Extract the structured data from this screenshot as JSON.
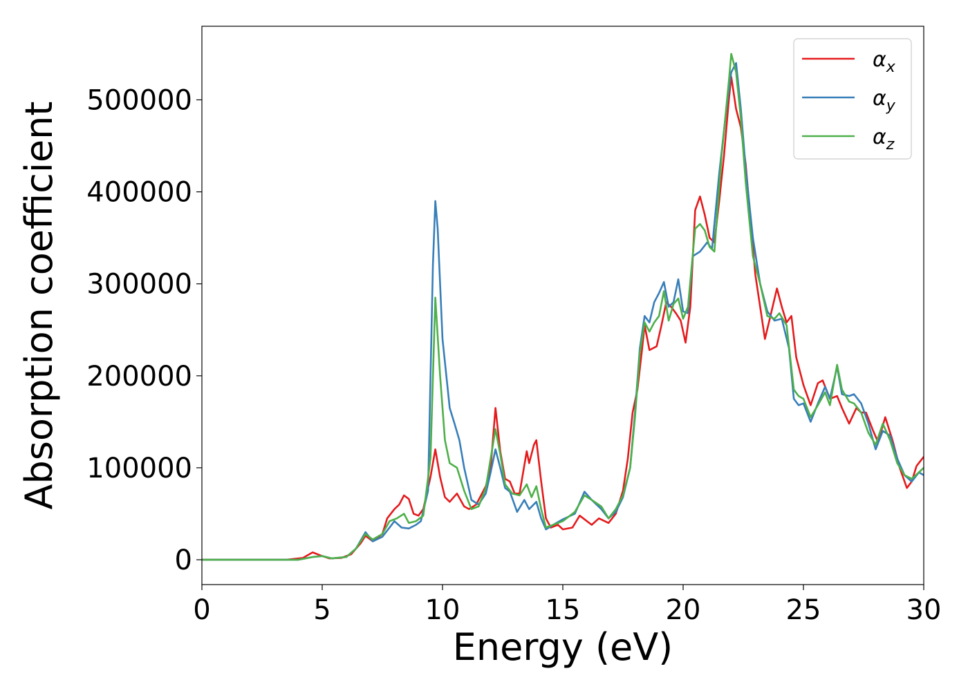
{
  "chart_data": {
    "type": "line",
    "title": "",
    "xlabel": "Energy (eV)",
    "ylabel": "Absorption coefficient",
    "xlim": [
      0,
      30
    ],
    "ylim": [
      -27000,
      580000
    ],
    "xticks": [
      0,
      5,
      10,
      15,
      20,
      25,
      30
    ],
    "yticks": [
      0,
      100000,
      200000,
      300000,
      400000,
      500000
    ],
    "grid": false,
    "legend_position": "top-right",
    "series": [
      {
        "name": "α_x",
        "symbol": "α",
        "subscript": "x",
        "color": "#e41a1c",
        "points": [
          [
            0,
            0
          ],
          [
            3.5,
            0
          ],
          [
            4.2,
            2000
          ],
          [
            4.6,
            8000
          ],
          [
            5.0,
            4000
          ],
          [
            5.3,
            1500
          ],
          [
            5.8,
            2000
          ],
          [
            6.2,
            6000
          ],
          [
            6.6,
            18000
          ],
          [
            6.8,
            26000
          ],
          [
            7.1,
            20000
          ],
          [
            7.5,
            28000
          ],
          [
            7.7,
            45000
          ],
          [
            8.0,
            55000
          ],
          [
            8.2,
            60000
          ],
          [
            8.4,
            70000
          ],
          [
            8.6,
            66000
          ],
          [
            8.8,
            50000
          ],
          [
            9.0,
            48000
          ],
          [
            9.2,
            55000
          ],
          [
            9.5,
            90000
          ],
          [
            9.7,
            120000
          ],
          [
            9.9,
            90000
          ],
          [
            10.1,
            68000
          ],
          [
            10.3,
            63000
          ],
          [
            10.6,
            72000
          ],
          [
            10.9,
            58000
          ],
          [
            11.1,
            55000
          ],
          [
            11.4,
            60000
          ],
          [
            11.8,
            80000
          ],
          [
            12.0,
            100000
          ],
          [
            12.2,
            165000
          ],
          [
            12.4,
            118000
          ],
          [
            12.6,
            88000
          ],
          [
            12.8,
            85000
          ],
          [
            13.0,
            72000
          ],
          [
            13.2,
            72000
          ],
          [
            13.5,
            118000
          ],
          [
            13.6,
            105000
          ],
          [
            13.8,
            125000
          ],
          [
            13.9,
            130000
          ],
          [
            14.1,
            85000
          ],
          [
            14.3,
            45000
          ],
          [
            14.5,
            35000
          ],
          [
            14.8,
            38000
          ],
          [
            15.0,
            33000
          ],
          [
            15.4,
            35000
          ],
          [
            15.7,
            48000
          ],
          [
            16.0,
            42000
          ],
          [
            16.2,
            38000
          ],
          [
            16.5,
            45000
          ],
          [
            16.9,
            40000
          ],
          [
            17.2,
            50000
          ],
          [
            17.5,
            75000
          ],
          [
            17.7,
            110000
          ],
          [
            17.9,
            160000
          ],
          [
            18.1,
            185000
          ],
          [
            18.3,
            230000
          ],
          [
            18.4,
            255000
          ],
          [
            18.6,
            228000
          ],
          [
            18.9,
            232000
          ],
          [
            19.1,
            255000
          ],
          [
            19.3,
            280000
          ],
          [
            19.5,
            275000
          ],
          [
            19.7,
            268000
          ],
          [
            19.9,
            260000
          ],
          [
            20.1,
            236000
          ],
          [
            20.3,
            275000
          ],
          [
            20.5,
            380000
          ],
          [
            20.7,
            395000
          ],
          [
            20.9,
            375000
          ],
          [
            21.1,
            350000
          ],
          [
            21.3,
            345000
          ],
          [
            21.5,
            390000
          ],
          [
            21.7,
            440000
          ],
          [
            21.9,
            500000
          ],
          [
            22.0,
            525000
          ],
          [
            22.2,
            490000
          ],
          [
            22.4,
            470000
          ],
          [
            22.6,
            430000
          ],
          [
            22.8,
            370000
          ],
          [
            23.0,
            310000
          ],
          [
            23.2,
            275000
          ],
          [
            23.4,
            240000
          ],
          [
            23.6,
            262000
          ],
          [
            23.9,
            295000
          ],
          [
            24.1,
            275000
          ],
          [
            24.3,
            258000
          ],
          [
            24.5,
            265000
          ],
          [
            24.7,
            220000
          ],
          [
            25.0,
            190000
          ],
          [
            25.3,
            168000
          ],
          [
            25.6,
            192000
          ],
          [
            25.8,
            195000
          ],
          [
            26.1,
            175000
          ],
          [
            26.4,
            178000
          ],
          [
            26.6,
            165000
          ],
          [
            26.9,
            148000
          ],
          [
            27.2,
            165000
          ],
          [
            27.4,
            160000
          ],
          [
            27.6,
            160000
          ],
          [
            27.9,
            140000
          ],
          [
            28.1,
            128000
          ],
          [
            28.4,
            155000
          ],
          [
            28.7,
            130000
          ],
          [
            29.0,
            100000
          ],
          [
            29.3,
            78000
          ],
          [
            29.5,
            85000
          ],
          [
            29.7,
            102000
          ],
          [
            30.0,
            112000
          ]
        ]
      },
      {
        "name": "α_y",
        "symbol": "α",
        "subscript": "y",
        "color": "#377eb8",
        "points": [
          [
            0,
            0
          ],
          [
            4.0,
            0
          ],
          [
            4.6,
            3000
          ],
          [
            5.0,
            4000
          ],
          [
            5.4,
            1500
          ],
          [
            6.0,
            3000
          ],
          [
            6.4,
            12000
          ],
          [
            6.8,
            30000
          ],
          [
            7.1,
            20000
          ],
          [
            7.5,
            25000
          ],
          [
            7.8,
            35000
          ],
          [
            8.0,
            42000
          ],
          [
            8.3,
            35000
          ],
          [
            8.6,
            34000
          ],
          [
            8.9,
            38000
          ],
          [
            9.1,
            42000
          ],
          [
            9.4,
            75000
          ],
          [
            9.6,
            320000
          ],
          [
            9.7,
            390000
          ],
          [
            9.8,
            360000
          ],
          [
            10.0,
            240000
          ],
          [
            10.3,
            165000
          ],
          [
            10.5,
            148000
          ],
          [
            10.7,
            130000
          ],
          [
            10.9,
            100000
          ],
          [
            11.2,
            65000
          ],
          [
            11.5,
            60000
          ],
          [
            11.8,
            72000
          ],
          [
            12.0,
            95000
          ],
          [
            12.2,
            120000
          ],
          [
            12.4,
            100000
          ],
          [
            12.6,
            78000
          ],
          [
            12.8,
            74000
          ],
          [
            13.1,
            52000
          ],
          [
            13.4,
            65000
          ],
          [
            13.6,
            55000
          ],
          [
            13.9,
            63000
          ],
          [
            14.1,
            45000
          ],
          [
            14.3,
            33000
          ],
          [
            14.6,
            38000
          ],
          [
            15.0,
            44000
          ],
          [
            15.5,
            50000
          ],
          [
            15.9,
            74000
          ],
          [
            16.2,
            65000
          ],
          [
            16.6,
            55000
          ],
          [
            16.9,
            45000
          ],
          [
            17.2,
            52000
          ],
          [
            17.5,
            68000
          ],
          [
            17.8,
            100000
          ],
          [
            18.0,
            160000
          ],
          [
            18.2,
            230000
          ],
          [
            18.4,
            265000
          ],
          [
            18.6,
            258000
          ],
          [
            18.8,
            280000
          ],
          [
            19.0,
            290000
          ],
          [
            19.2,
            302000
          ],
          [
            19.4,
            275000
          ],
          [
            19.6,
            280000
          ],
          [
            19.8,
            305000
          ],
          [
            20.0,
            270000
          ],
          [
            20.2,
            268000
          ],
          [
            20.4,
            330000
          ],
          [
            20.7,
            335000
          ],
          [
            21.0,
            345000
          ],
          [
            21.2,
            338000
          ],
          [
            21.5,
            420000
          ],
          [
            21.8,
            490000
          ],
          [
            22.0,
            530000
          ],
          [
            22.2,
            540000
          ],
          [
            22.4,
            490000
          ],
          [
            22.6,
            425000
          ],
          [
            22.9,
            350000
          ],
          [
            23.2,
            300000
          ],
          [
            23.5,
            270000
          ],
          [
            23.8,
            260000
          ],
          [
            24.1,
            262000
          ],
          [
            24.4,
            230000
          ],
          [
            24.6,
            175000
          ],
          [
            24.8,
            168000
          ],
          [
            25.0,
            170000
          ],
          [
            25.3,
            150000
          ],
          [
            25.6,
            170000
          ],
          [
            25.9,
            188000
          ],
          [
            26.1,
            175000
          ],
          [
            26.4,
            210000
          ],
          [
            26.6,
            180000
          ],
          [
            26.9,
            178000
          ],
          [
            27.1,
            180000
          ],
          [
            27.4,
            170000
          ],
          [
            27.7,
            148000
          ],
          [
            28.0,
            120000
          ],
          [
            28.3,
            140000
          ],
          [
            28.6,
            135000
          ],
          [
            28.9,
            110000
          ],
          [
            29.2,
            92000
          ],
          [
            29.5,
            85000
          ],
          [
            29.8,
            95000
          ],
          [
            30.0,
            92000
          ]
        ]
      },
      {
        "name": "α_z",
        "symbol": "α",
        "subscript": "z",
        "color": "#4daf4a",
        "points": [
          [
            0,
            0
          ],
          [
            4.0,
            0
          ],
          [
            4.6,
            3000
          ],
          [
            5.0,
            4000
          ],
          [
            5.4,
            1500
          ],
          [
            6.0,
            3000
          ],
          [
            6.4,
            12000
          ],
          [
            6.8,
            28000
          ],
          [
            7.1,
            22000
          ],
          [
            7.5,
            28000
          ],
          [
            7.8,
            42000
          ],
          [
            8.1,
            45000
          ],
          [
            8.4,
            50000
          ],
          [
            8.6,
            40000
          ],
          [
            8.9,
            42000
          ],
          [
            9.2,
            48000
          ],
          [
            9.5,
            110000
          ],
          [
            9.7,
            285000
          ],
          [
            9.9,
            200000
          ],
          [
            10.1,
            130000
          ],
          [
            10.3,
            105000
          ],
          [
            10.6,
            100000
          ],
          [
            10.9,
            75000
          ],
          [
            11.2,
            55000
          ],
          [
            11.5,
            58000
          ],
          [
            11.8,
            78000
          ],
          [
            12.0,
            110000
          ],
          [
            12.2,
            142000
          ],
          [
            12.4,
            115000
          ],
          [
            12.6,
            82000
          ],
          [
            12.9,
            72000
          ],
          [
            13.2,
            70000
          ],
          [
            13.5,
            82000
          ],
          [
            13.7,
            68000
          ],
          [
            13.9,
            80000
          ],
          [
            14.1,
            55000
          ],
          [
            14.3,
            35000
          ],
          [
            14.6,
            38000
          ],
          [
            15.0,
            42000
          ],
          [
            15.5,
            52000
          ],
          [
            15.9,
            70000
          ],
          [
            16.2,
            65000
          ],
          [
            16.6,
            58000
          ],
          [
            16.9,
            45000
          ],
          [
            17.2,
            55000
          ],
          [
            17.5,
            70000
          ],
          [
            17.8,
            100000
          ],
          [
            18.0,
            155000
          ],
          [
            18.2,
            225000
          ],
          [
            18.4,
            258000
          ],
          [
            18.6,
            248000
          ],
          [
            18.8,
            258000
          ],
          [
            19.0,
            265000
          ],
          [
            19.2,
            292000
          ],
          [
            19.4,
            260000
          ],
          [
            19.6,
            278000
          ],
          [
            19.8,
            284000
          ],
          [
            20.0,
            262000
          ],
          [
            20.2,
            275000
          ],
          [
            20.5,
            360000
          ],
          [
            20.7,
            365000
          ],
          [
            20.9,
            358000
          ],
          [
            21.1,
            340000
          ],
          [
            21.3,
            335000
          ],
          [
            21.6,
            440000
          ],
          [
            21.9,
            520000
          ],
          [
            22.0,
            550000
          ],
          [
            22.2,
            530000
          ],
          [
            22.4,
            480000
          ],
          [
            22.6,
            410000
          ],
          [
            22.9,
            330000
          ],
          [
            23.2,
            300000
          ],
          [
            23.5,
            265000
          ],
          [
            23.8,
            262000
          ],
          [
            24.0,
            268000
          ],
          [
            24.3,
            255000
          ],
          [
            24.6,
            185000
          ],
          [
            24.8,
            178000
          ],
          [
            25.0,
            175000
          ],
          [
            25.3,
            155000
          ],
          [
            25.6,
            168000
          ],
          [
            25.9,
            182000
          ],
          [
            26.1,
            168000
          ],
          [
            26.4,
            212000
          ],
          [
            26.6,
            185000
          ],
          [
            26.9,
            172000
          ],
          [
            27.1,
            170000
          ],
          [
            27.4,
            160000
          ],
          [
            27.7,
            138000
          ],
          [
            28.0,
            125000
          ],
          [
            28.3,
            148000
          ],
          [
            28.6,
            130000
          ],
          [
            28.9,
            105000
          ],
          [
            29.2,
            92000
          ],
          [
            29.5,
            88000
          ],
          [
            29.8,
            95000
          ],
          [
            30.0,
            100000
          ]
        ]
      }
    ]
  }
}
